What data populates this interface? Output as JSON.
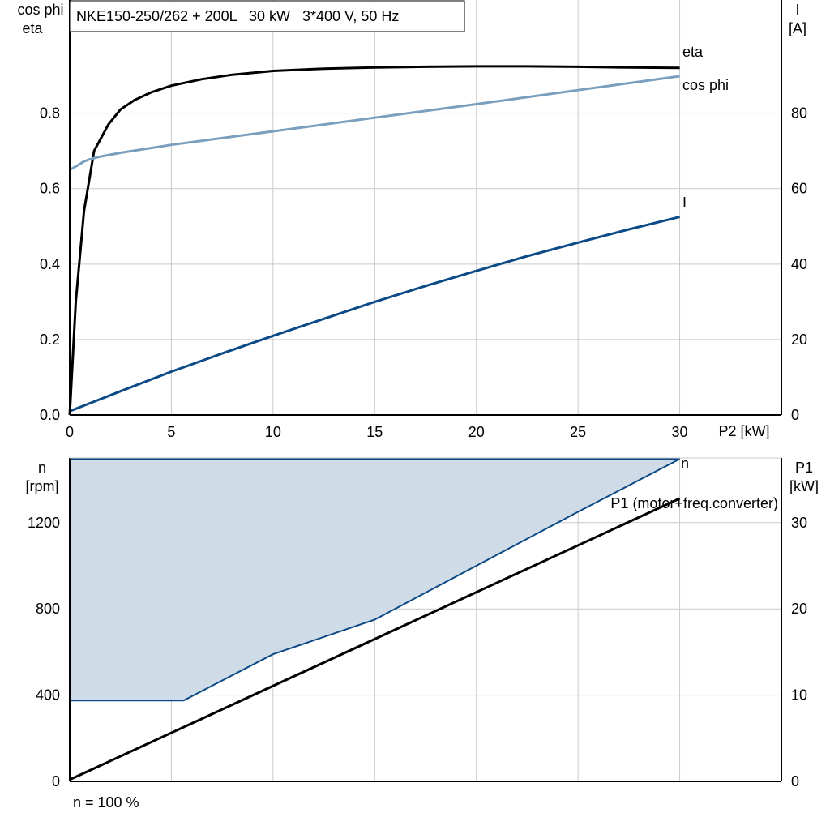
{
  "colors": {
    "eta": "#000000",
    "cos_phi": "#7a9fbe",
    "current": "#0b4a86",
    "speed": "#0b4a86",
    "speed_fill": "#cfdce8",
    "p1": "#000000",
    "grid": "#c9c9c9"
  },
  "footer_note": "n = 100 %",
  "chart_data": [
    {
      "type": "line",
      "title": "NKE150-250/262 + 200L   30 kW   3*400 V, 50 Hz",
      "xlabel": "P2 [kW]",
      "ylabel_left": [
        "cos phi",
        "eta"
      ],
      "ylabel_right": [
        "I",
        "[A]"
      ],
      "xlim": [
        0,
        35
      ],
      "ylim_left": [
        0,
        1.1
      ],
      "ylim_right": [
        0,
        110
      ],
      "xticks": [
        0,
        5,
        10,
        15,
        20,
        25,
        30
      ],
      "yticks_left": [
        0.0,
        0.2,
        0.4,
        0.6,
        0.8
      ],
      "ytick_labels_left": [
        "0.0",
        "0.2",
        "0.4",
        "0.6",
        "0.8"
      ],
      "yticks_right": [
        0,
        20,
        40,
        60,
        80
      ],
      "grid": true,
      "series": [
        {
          "name": "eta",
          "axis": "left",
          "x": [
            0,
            0.3,
            0.7,
            1.2,
            1.9,
            2.5,
            3.2,
            4.0,
            5.0,
            6.5,
            8.0,
            10.0,
            12.5,
            15.0,
            17.5,
            20.0,
            22.5,
            25.0,
            27.5,
            30.0
          ],
          "y": [
            0.0,
            0.3,
            0.54,
            0.7,
            0.77,
            0.81,
            0.835,
            0.855,
            0.873,
            0.89,
            0.902,
            0.912,
            0.918,
            0.921,
            0.923,
            0.924,
            0.924,
            0.923,
            0.921,
            0.92
          ]
        },
        {
          "name": "cos phi",
          "axis": "left",
          "x": [
            0,
            0.4,
            0.7,
            1.0,
            1.5,
            2.5,
            5,
            10,
            15,
            20,
            25,
            30
          ],
          "y": [
            0.65,
            0.662,
            0.672,
            0.678,
            0.685,
            0.695,
            0.716,
            0.752,
            0.788,
            0.824,
            0.861,
            0.898
          ]
        },
        {
          "name": "I",
          "axis": "right",
          "x": [
            0,
            2.5,
            5,
            7.5,
            10,
            12.5,
            15,
            17.5,
            20,
            22.5,
            25,
            27.5,
            30
          ],
          "y": [
            1,
            6.3,
            11.5,
            16.3,
            21,
            25.5,
            30,
            34.2,
            38.2,
            42.1,
            45.7,
            49.2,
            52.5
          ]
        }
      ]
    },
    {
      "type": "area",
      "title": "",
      "ylabel_left": [
        "n",
        "[rpm]"
      ],
      "ylabel_right": [
        "P1",
        "[kW]"
      ],
      "xlim": [
        0,
        35
      ],
      "ylim_left": [
        0,
        1500
      ],
      "ylim_right": [
        0,
        37.5
      ],
      "xticks": [
        0,
        5,
        10,
        15,
        20,
        25,
        30
      ],
      "yticks_left": [
        0,
        400,
        800,
        1200
      ],
      "yticks_right": [
        0,
        10,
        20,
        30
      ],
      "grid": true,
      "series": [
        {
          "name": "n",
          "axis": "left",
          "upper": {
            "x": [
              0,
              30
            ],
            "y": [
              1495,
              1495
            ]
          },
          "lower": {
            "x": [
              0,
              5.6,
              10,
              15,
              20,
              25,
              30
            ],
            "y": [
              375,
              375,
              590,
              750,
              1000,
              1250,
              1495
            ]
          }
        },
        {
          "name": "P1 (motor+freq.converter)",
          "axis": "right",
          "x": [
            0,
            30
          ],
          "y": [
            0.2,
            32.8
          ]
        }
      ]
    }
  ]
}
